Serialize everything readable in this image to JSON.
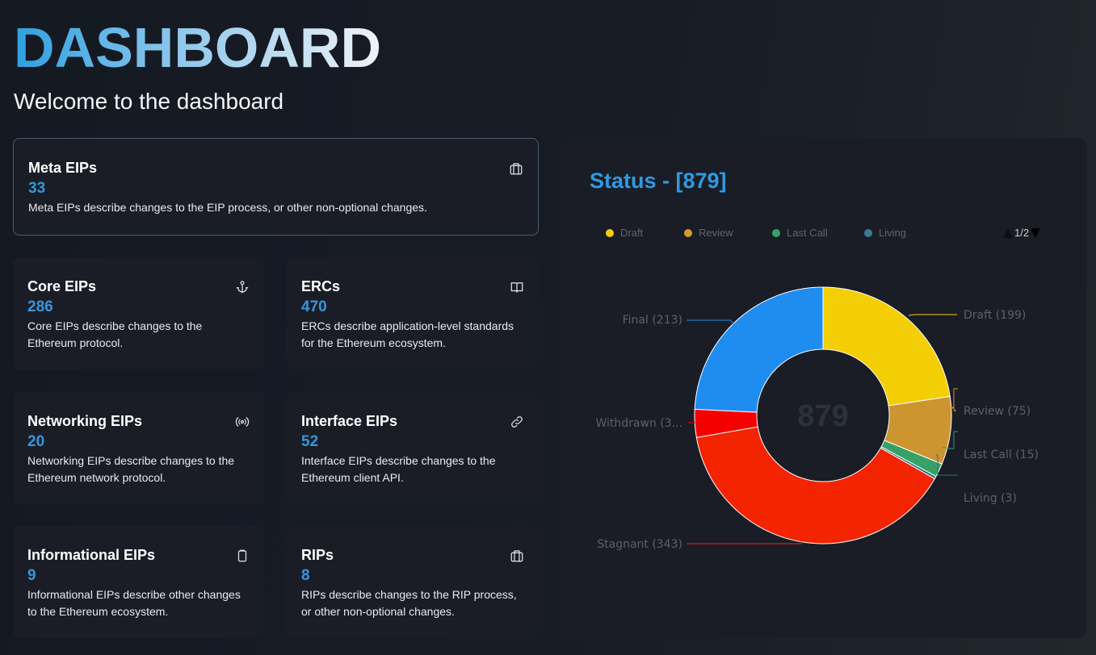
{
  "header": {
    "title": "DASHBOARD",
    "subtitle": "Welcome to the dashboard"
  },
  "cards": [
    {
      "title": "Meta EIPs",
      "count": "33",
      "description": "Meta EIPs describe changes to the EIP process, or other non-optional changes.",
      "icon": "briefcase-icon"
    },
    {
      "title": "Core EIPs",
      "count": "286",
      "description": "Core EIPs describe changes to the Ethereum protocol.",
      "icon": "anchor-icon"
    },
    {
      "title": "ERCs",
      "count": "470",
      "description": "ERCs describe application-level standards for the Ethereum ecosystem.",
      "icon": "book-open-icon"
    },
    {
      "title": "Networking EIPs",
      "count": "20",
      "description": "Networking EIPs describe changes to the Ethereum network protocol.",
      "icon": "broadcast-icon"
    },
    {
      "title": "Interface EIPs",
      "count": "52",
      "description": "Interface EIPs describe changes to the Ethereum client API.",
      "icon": "link-icon"
    },
    {
      "title": "Informational EIPs",
      "count": "9",
      "description": "Informational EIPs describe other changes to the Ethereum ecosystem.",
      "icon": "clipboard-icon"
    },
    {
      "title": "RIPs",
      "count": "8",
      "description": "RIPs describe changes to the RIP process, or other non-optional changes.",
      "icon": "briefcase-icon"
    }
  ],
  "status_panel": {
    "title": "Status - [879]",
    "legend": [
      {
        "label": "Draft",
        "color": "#f5cf05"
      },
      {
        "label": "Review",
        "color": "#d49a30"
      },
      {
        "label": "Last Call",
        "color": "#36a36a"
      },
      {
        "label": "Living",
        "color": "#3a7b91"
      }
    ],
    "pager": "1/2",
    "center_value": "879",
    "slice_labels": {
      "draft": "Draft (199)",
      "review": "Review (75)",
      "last_call": "Last Call (15)",
      "living": "Living (3)",
      "stagnant": "Stagnant (343)",
      "withdrawn": "Withdrawn (3...",
      "final": "Final (213)"
    }
  },
  "chart_data": {
    "type": "pie",
    "variant": "donut",
    "title": "Status - [879]",
    "total": 879,
    "categories": [
      "Draft",
      "Review",
      "Last Call",
      "Living",
      "Stagnant",
      "Withdrawn",
      "Final"
    ],
    "values": [
      199,
      75,
      15,
      3,
      343,
      31,
      213
    ],
    "colors": [
      "#f3ce05",
      "#cc9530",
      "#37a067",
      "#2f6f85",
      "#f42300",
      "#f50000",
      "#1f8cf0"
    ],
    "legend_position": "top",
    "legend_visible_page": "1/2",
    "legend_entries_visible": [
      "Draft",
      "Review",
      "Last Call",
      "Living"
    ],
    "center_label": "879"
  }
}
